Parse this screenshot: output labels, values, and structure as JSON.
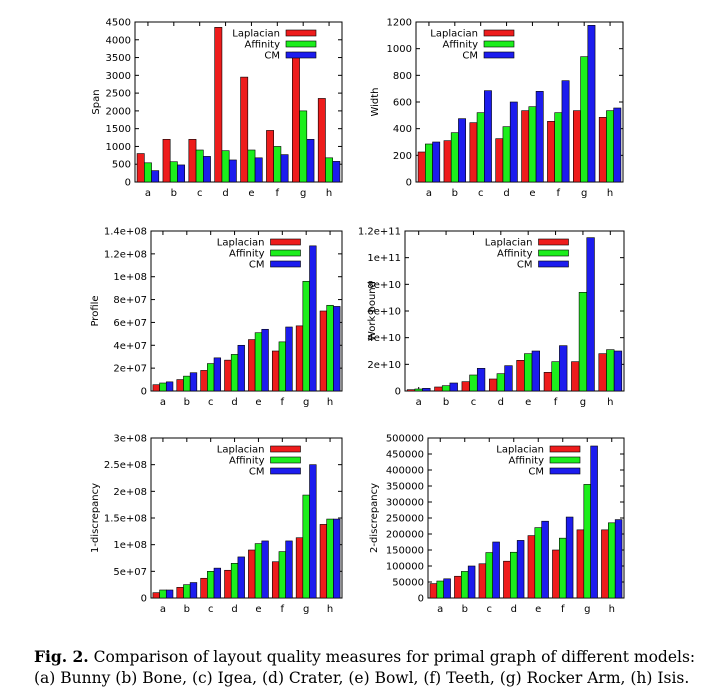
{
  "colors": {
    "laplacian": "#ee1c1c",
    "affinity": "#1cee1c",
    "cm": "#1c1cee"
  },
  "caption": {
    "label": "Fig. 2.",
    "text": "Comparison of layout quality measures for primal graph of different models: (a) Bunny (b) Bone, (c) Igea, (d) Crater, (e) Bowl, (f) Teeth, (g) Rocker Arm, (h) Isis."
  },
  "chart_data": [
    {
      "type": "bar",
      "ylabel": "Span",
      "categories": [
        "a",
        "b",
        "c",
        "d",
        "e",
        "f",
        "g",
        "h"
      ],
      "ylim": [
        0,
        4500
      ],
      "yticks": [
        0,
        500,
        1000,
        1500,
        2000,
        2500,
        3000,
        3500,
        4000,
        4500
      ],
      "ytick_labels": [
        "0",
        "500",
        "1000",
        "1500",
        "2000",
        "2500",
        "3000",
        "3500",
        "4000",
        "4500"
      ],
      "legend": "top-right",
      "series": [
        {
          "name": "Laplacian",
          "values": [
            800,
            1200,
            1200,
            4350,
            2950,
            1450,
            3650,
            2350
          ]
        },
        {
          "name": "Affinity",
          "values": [
            540,
            570,
            900,
            880,
            900,
            1000,
            2000,
            680
          ]
        },
        {
          "name": "CM",
          "values": [
            320,
            480,
            720,
            620,
            680,
            770,
            1200,
            580
          ]
        }
      ]
    },
    {
      "type": "bar",
      "ylabel": "Width",
      "categories": [
        "a",
        "b",
        "c",
        "d",
        "e",
        "f",
        "g",
        "h"
      ],
      "ylim": [
        0,
        1200
      ],
      "yticks": [
        0,
        200,
        400,
        600,
        800,
        1000,
        1200
      ],
      "ytick_labels": [
        "0",
        "200",
        "400",
        "600",
        "800",
        "1000",
        "1200"
      ],
      "legend": "top-left",
      "series": [
        {
          "name": "Laplacian",
          "values": [
            225,
            310,
            445,
            325,
            535,
            455,
            535,
            485
          ]
        },
        {
          "name": "Affinity",
          "values": [
            285,
            370,
            520,
            415,
            565,
            520,
            940,
            535
          ]
        },
        {
          "name": "CM",
          "values": [
            300,
            475,
            685,
            600,
            680,
            760,
            1175,
            555
          ]
        }
      ]
    },
    {
      "type": "bar",
      "ylabel": "Profile",
      "categories": [
        "a",
        "b",
        "c",
        "d",
        "e",
        "f",
        "g",
        "h"
      ],
      "ylim": [
        0,
        140000000
      ],
      "yticks": [
        0,
        20000000,
        40000000,
        60000000,
        80000000,
        100000000,
        120000000,
        140000000
      ],
      "ytick_labels": [
        "0",
        "2e+07",
        "4e+07",
        "6e+07",
        "8e+07",
        "1e+08",
        "1.2e+08",
        "1.4e+08"
      ],
      "legend": "top-center",
      "series": [
        {
          "name": "Laplacian",
          "values": [
            5500000,
            10000000,
            18000000,
            27000000,
            45000000,
            35000000,
            57000000,
            70000000
          ]
        },
        {
          "name": "Affinity",
          "values": [
            7000000,
            13000000,
            24000000,
            32000000,
            51000000,
            43000000,
            96000000,
            75000000
          ]
        },
        {
          "name": "CM",
          "values": [
            8000000,
            16000000,
            29000000,
            40000000,
            54000000,
            56000000,
            127000000,
            74000000
          ]
        }
      ]
    },
    {
      "type": "bar",
      "ylabel": "Work bound",
      "categories": [
        "a",
        "b",
        "c",
        "d",
        "e",
        "f",
        "g",
        "h"
      ],
      "ylim": [
        0,
        120000000000
      ],
      "yticks": [
        0,
        20000000000,
        40000000000,
        60000000000,
        80000000000,
        100000000000,
        120000000000
      ],
      "ytick_labels": [
        "0",
        "2e+10",
        "4e+10",
        "6e+10",
        "8e+10",
        "1e+11",
        "1.2e+11"
      ],
      "legend": "top-center",
      "series": [
        {
          "name": "Laplacian",
          "values": [
            1000000000,
            3000000000,
            7000000000,
            9000000000,
            23000000000,
            14000000000,
            22000000000,
            28000000000
          ]
        },
        {
          "name": "Affinity",
          "values": [
            1500000000,
            4000000000,
            12000000000,
            13000000000,
            28000000000,
            22000000000,
            74000000000,
            31000000000
          ]
        },
        {
          "name": "CM",
          "values": [
            2000000000,
            6000000000,
            17000000000,
            19000000000,
            30000000000,
            34000000000,
            115000000000,
            30000000000
          ]
        }
      ]
    },
    {
      "type": "bar",
      "ylabel": "1-discrepancy",
      "categories": [
        "a",
        "b",
        "c",
        "d",
        "e",
        "f",
        "g",
        "h"
      ],
      "ylim": [
        0,
        300000000
      ],
      "yticks": [
        0,
        50000000,
        100000000,
        150000000,
        200000000,
        250000000,
        300000000
      ],
      "ytick_labels": [
        "0",
        "5e+07",
        "1e+08",
        "1.5e+08",
        "2e+08",
        "2.5e+08",
        "3e+08"
      ],
      "legend": "top-center",
      "series": [
        {
          "name": "Laplacian",
          "values": [
            10000000,
            20000000,
            37000000,
            52000000,
            90000000,
            68000000,
            113000000,
            138000000
          ]
        },
        {
          "name": "Affinity",
          "values": [
            15000000,
            25000000,
            50000000,
            65000000,
            102000000,
            87000000,
            193000000,
            148000000
          ]
        },
        {
          "name": "CM",
          "values": [
            15000000,
            29000000,
            56000000,
            77000000,
            107000000,
            107000000,
            250000000,
            148000000
          ]
        }
      ]
    },
    {
      "type": "bar",
      "ylabel": "2-discrepancy",
      "categories": [
        "a",
        "b",
        "c",
        "d",
        "e",
        "f",
        "g",
        "h"
      ],
      "ylim": [
        0,
        500000
      ],
      "yticks": [
        0,
        50000,
        100000,
        150000,
        200000,
        250000,
        300000,
        350000,
        400000,
        450000,
        500000
      ],
      "ytick_labels": [
        "0",
        "50000",
        "100000",
        "150000",
        "200000",
        "250000",
        "300000",
        "350000",
        "400000",
        "450000",
        "500000"
      ],
      "legend": "top-center",
      "series": [
        {
          "name": "Laplacian",
          "values": [
            45000,
            68000,
            107000,
            115000,
            195000,
            150000,
            213000,
            213000
          ]
        },
        {
          "name": "Affinity",
          "values": [
            53000,
            83000,
            142000,
            143000,
            220000,
            187000,
            355000,
            235000
          ]
        },
        {
          "name": "CM",
          "values": [
            60000,
            100000,
            175000,
            180000,
            240000,
            253000,
            475000,
            245000
          ]
        }
      ]
    }
  ]
}
